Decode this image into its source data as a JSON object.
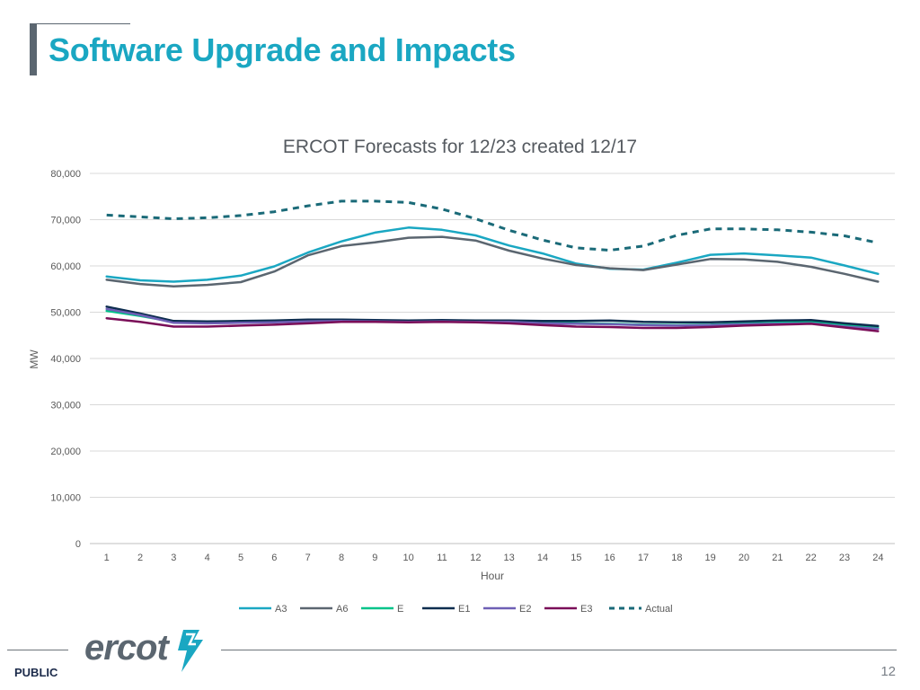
{
  "slide": {
    "title": "Software Upgrade and Impacts",
    "footer_label": "PUBLIC",
    "page_number": "12",
    "logo_text": "ercot"
  },
  "chart_data": {
    "type": "line",
    "title": "ERCOT Forecasts for 12/23 created 12/17",
    "xlabel": "Hour",
    "ylabel": "MW",
    "ylim": [
      0,
      80000
    ],
    "yticks": [
      "0",
      "10,000",
      "20,000",
      "30,000",
      "40,000",
      "50,000",
      "60,000",
      "70,000",
      "80,000"
    ],
    "categories": [
      "1",
      "2",
      "3",
      "4",
      "5",
      "6",
      "7",
      "8",
      "9",
      "10",
      "11",
      "12",
      "13",
      "14",
      "15",
      "16",
      "17",
      "18",
      "19",
      "20",
      "21",
      "22",
      "23",
      "24"
    ],
    "grid": true,
    "legend_position": "bottom",
    "series": [
      {
        "name": "A3",
        "color": "#1aa7c2",
        "dashed": false,
        "values": [
          57700,
          56900,
          56600,
          57000,
          57900,
          59900,
          62900,
          65300,
          67200,
          68300,
          67800,
          66600,
          64400,
          62700,
          60500,
          59400,
          59200,
          60700,
          62400,
          62700,
          62300,
          61800,
          60100,
          58300
        ]
      },
      {
        "name": "A6",
        "color": "#5b6670",
        "dashed": false,
        "values": [
          57000,
          56100,
          55600,
          55900,
          56500,
          58800,
          62300,
          64300,
          65100,
          66100,
          66300,
          65500,
          63300,
          61600,
          60200,
          59500,
          59100,
          60300,
          61500,
          61400,
          60900,
          59800,
          58300,
          56600
        ]
      },
      {
        "name": "E",
        "color": "#00c389",
        "dashed": false,
        "values": [
          50300,
          49200,
          47900,
          47700,
          47800,
          47900,
          48200,
          48300,
          48100,
          48000,
          48200,
          48100,
          48000,
          47800,
          47600,
          47500,
          47300,
          47200,
          47300,
          47600,
          47700,
          47900,
          47200,
          46600
        ]
      },
      {
        "name": "E1",
        "color": "#0d2d4f",
        "dashed": false,
        "values": [
          51200,
          49700,
          48100,
          48000,
          48100,
          48200,
          48400,
          48400,
          48300,
          48200,
          48300,
          48200,
          48200,
          48100,
          48100,
          48200,
          47900,
          47800,
          47800,
          48000,
          48200,
          48300,
          47600,
          47000
        ]
      },
      {
        "name": "E2",
        "color": "#6e5fb5",
        "dashed": false,
        "values": [
          50700,
          49400,
          47700,
          47600,
          47700,
          47800,
          48000,
          48100,
          48000,
          47900,
          48000,
          47900,
          47900,
          47600,
          47500,
          47400,
          47200,
          47100,
          47200,
          47400,
          47500,
          47600,
          46900,
          46400
        ]
      },
      {
        "name": "E3",
        "color": "#7a0e58",
        "dashed": false,
        "values": [
          48700,
          47900,
          46900,
          46900,
          47100,
          47300,
          47600,
          47900,
          47900,
          47800,
          47900,
          47800,
          47600,
          47200,
          46900,
          46800,
          46600,
          46600,
          46800,
          47100,
          47300,
          47500,
          46700,
          45900
        ]
      },
      {
        "name": "Actual",
        "color": "#1a6a78",
        "dashed": true,
        "values": [
          71000,
          70600,
          70200,
          70400,
          70900,
          71700,
          73000,
          74000,
          74000,
          73700,
          72300,
          70200,
          67700,
          65600,
          63900,
          63400,
          64300,
          66600,
          68000,
          68000,
          67800,
          67300,
          66500,
          65000
        ]
      }
    ]
  }
}
